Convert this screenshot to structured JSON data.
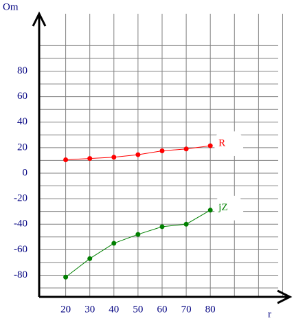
{
  "chart_data": {
    "type": "line",
    "x_label": "r",
    "y_label": "Om",
    "x": [
      20,
      30,
      40,
      50,
      60,
      70,
      80
    ],
    "series": [
      {
        "name": "R",
        "color": "#ff0000",
        "values": [
          10.5,
          11.5,
          12.5,
          14.5,
          17.5,
          19,
          21.5
        ]
      },
      {
        "name": "jZ",
        "color": "#008000",
        "values": [
          -81.5,
          -67,
          -55,
          -48,
          -42,
          -40,
          -29
        ]
      }
    ],
    "xlim": [
      9,
      113
    ],
    "ylim": [
      -97,
      125
    ],
    "xticks": [
      20,
      30,
      40,
      50,
      60,
      70,
      80
    ],
    "yticks": [
      -80,
      -60,
      -40,
      -20,
      0,
      20,
      40,
      60,
      80
    ],
    "xgrid": [
      20,
      30,
      40,
      50,
      60,
      70,
      80,
      90,
      100,
      110
    ],
    "ygrid": [
      -90,
      -80,
      -70,
      -60,
      -50,
      -40,
      -30,
      -20,
      -10,
      0,
      10,
      20,
      30,
      40,
      50,
      60,
      70,
      80,
      90,
      100
    ],
    "grid": true,
    "label_color": "#000080"
  }
}
